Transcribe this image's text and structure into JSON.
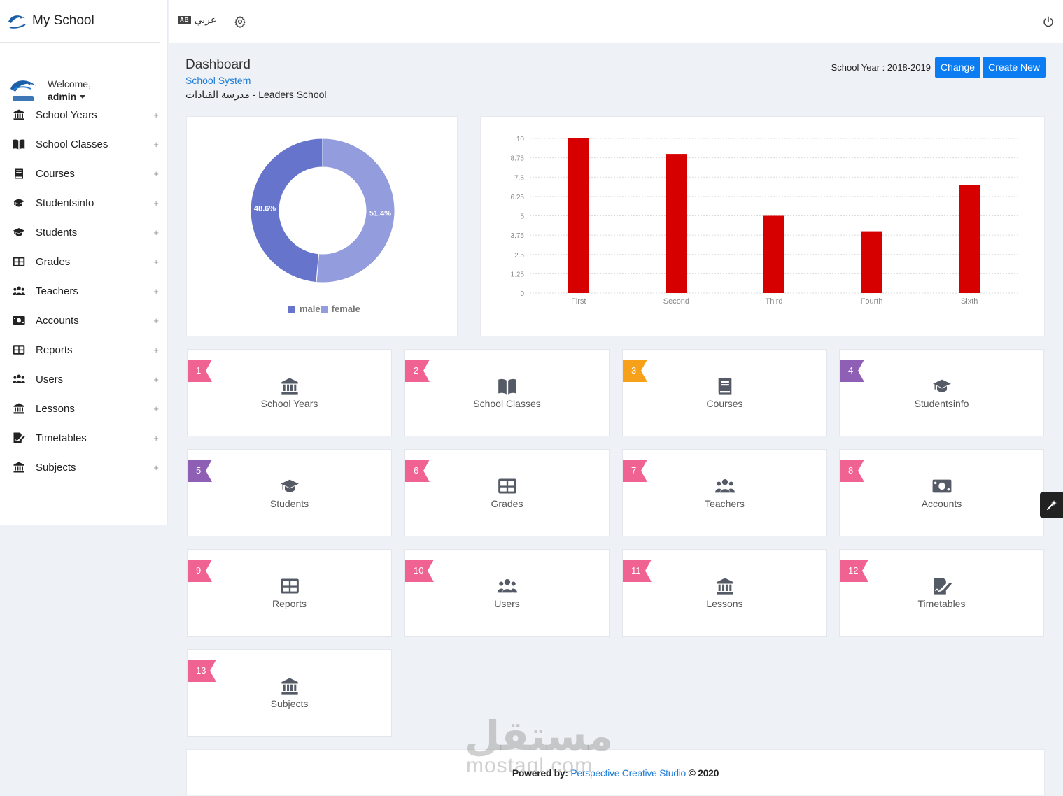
{
  "app": {
    "title": "My School"
  },
  "user": {
    "welcome": "Welcome,",
    "name": "admin"
  },
  "sidebar": {
    "items": [
      {
        "label": "School Years",
        "icon": "bank-icon"
      },
      {
        "label": "School Classes",
        "icon": "book-open-icon"
      },
      {
        "label": "Courses",
        "icon": "book-icon"
      },
      {
        "label": "Studentsinfo",
        "icon": "graduation-cap-icon"
      },
      {
        "label": "Students",
        "icon": "graduation-cap-icon"
      },
      {
        "label": "Grades",
        "icon": "table-icon"
      },
      {
        "label": "Teachers",
        "icon": "users-icon"
      },
      {
        "label": "Accounts",
        "icon": "money-icon"
      },
      {
        "label": "Reports",
        "icon": "table-icon"
      },
      {
        "label": "Users",
        "icon": "users-icon"
      },
      {
        "label": "Lessons",
        "icon": "bank-icon"
      },
      {
        "label": "Timetables",
        "icon": "signature-icon"
      },
      {
        "label": "Subjects",
        "icon": "bank-icon"
      }
    ],
    "expand_symbol": "+"
  },
  "topbar": {
    "lang_label": "عربي",
    "lang_badge": "AB"
  },
  "header": {
    "title": "Dashboard",
    "subtitle": "School System",
    "school": "مدرسة القيادات - Leaders School",
    "year_label": "School Year : 2018-2019",
    "change_label": "Change",
    "create_label": "Create New"
  },
  "colors": {
    "accent": "#0b7cf2",
    "male": "#6674cc",
    "female": "#939cdc",
    "bar": "#d60000",
    "pink": "#f06292",
    "orange": "#f7a11a",
    "purple": "#8e5fb5"
  },
  "chart_data": [
    {
      "type": "pie",
      "donut": true,
      "labels": [
        "male",
        "female"
      ],
      "values": [
        48.6,
        51.4
      ],
      "data_labels": [
        "48.6%",
        "51.4%"
      ],
      "legend": "bottom"
    },
    {
      "type": "bar",
      "categories": [
        "First",
        "Second",
        "Third",
        "Fourth",
        "Sixth"
      ],
      "values": [
        10,
        9,
        5,
        4,
        7
      ],
      "ylim": [
        0,
        10
      ],
      "yticks": [
        "0",
        "1.25",
        "2.5",
        "3.75",
        "5",
        "6.25",
        "7.5",
        "8.75",
        "10"
      ],
      "grid": true
    }
  ],
  "cards": [
    {
      "num": "1",
      "label": "School Years",
      "icon": "bank-icon",
      "color": "pink"
    },
    {
      "num": "2",
      "label": "School Classes",
      "icon": "book-open-icon",
      "color": "pink"
    },
    {
      "num": "3",
      "label": "Courses",
      "icon": "book-icon",
      "color": "orange"
    },
    {
      "num": "4",
      "label": "Studentsinfo",
      "icon": "graduation-cap-icon",
      "color": "purple"
    },
    {
      "num": "5",
      "label": "Students",
      "icon": "graduation-cap-icon",
      "color": "purple"
    },
    {
      "num": "6",
      "label": "Grades",
      "icon": "table-icon",
      "color": "pink"
    },
    {
      "num": "7",
      "label": "Teachers",
      "icon": "users-icon",
      "color": "pink"
    },
    {
      "num": "8",
      "label": "Accounts",
      "icon": "money-icon",
      "color": "pink"
    },
    {
      "num": "9",
      "label": "Reports",
      "icon": "table-icon",
      "color": "pink"
    },
    {
      "num": "10",
      "label": "Users",
      "icon": "users-icon",
      "color": "pink"
    },
    {
      "num": "11",
      "label": "Lessons",
      "icon": "bank-icon",
      "color": "pink"
    },
    {
      "num": "12",
      "label": "Timetables",
      "icon": "signature-icon",
      "color": "pink"
    },
    {
      "num": "13",
      "label": "Subjects",
      "icon": "bank-icon",
      "color": "pink"
    }
  ],
  "footer": {
    "prefix": "Powered by: ",
    "link": "Perspective Creative Studio",
    "suffix": " © 2020"
  },
  "watermark": {
    "arabic": "مستقل",
    "latin": "mostaql.com"
  }
}
